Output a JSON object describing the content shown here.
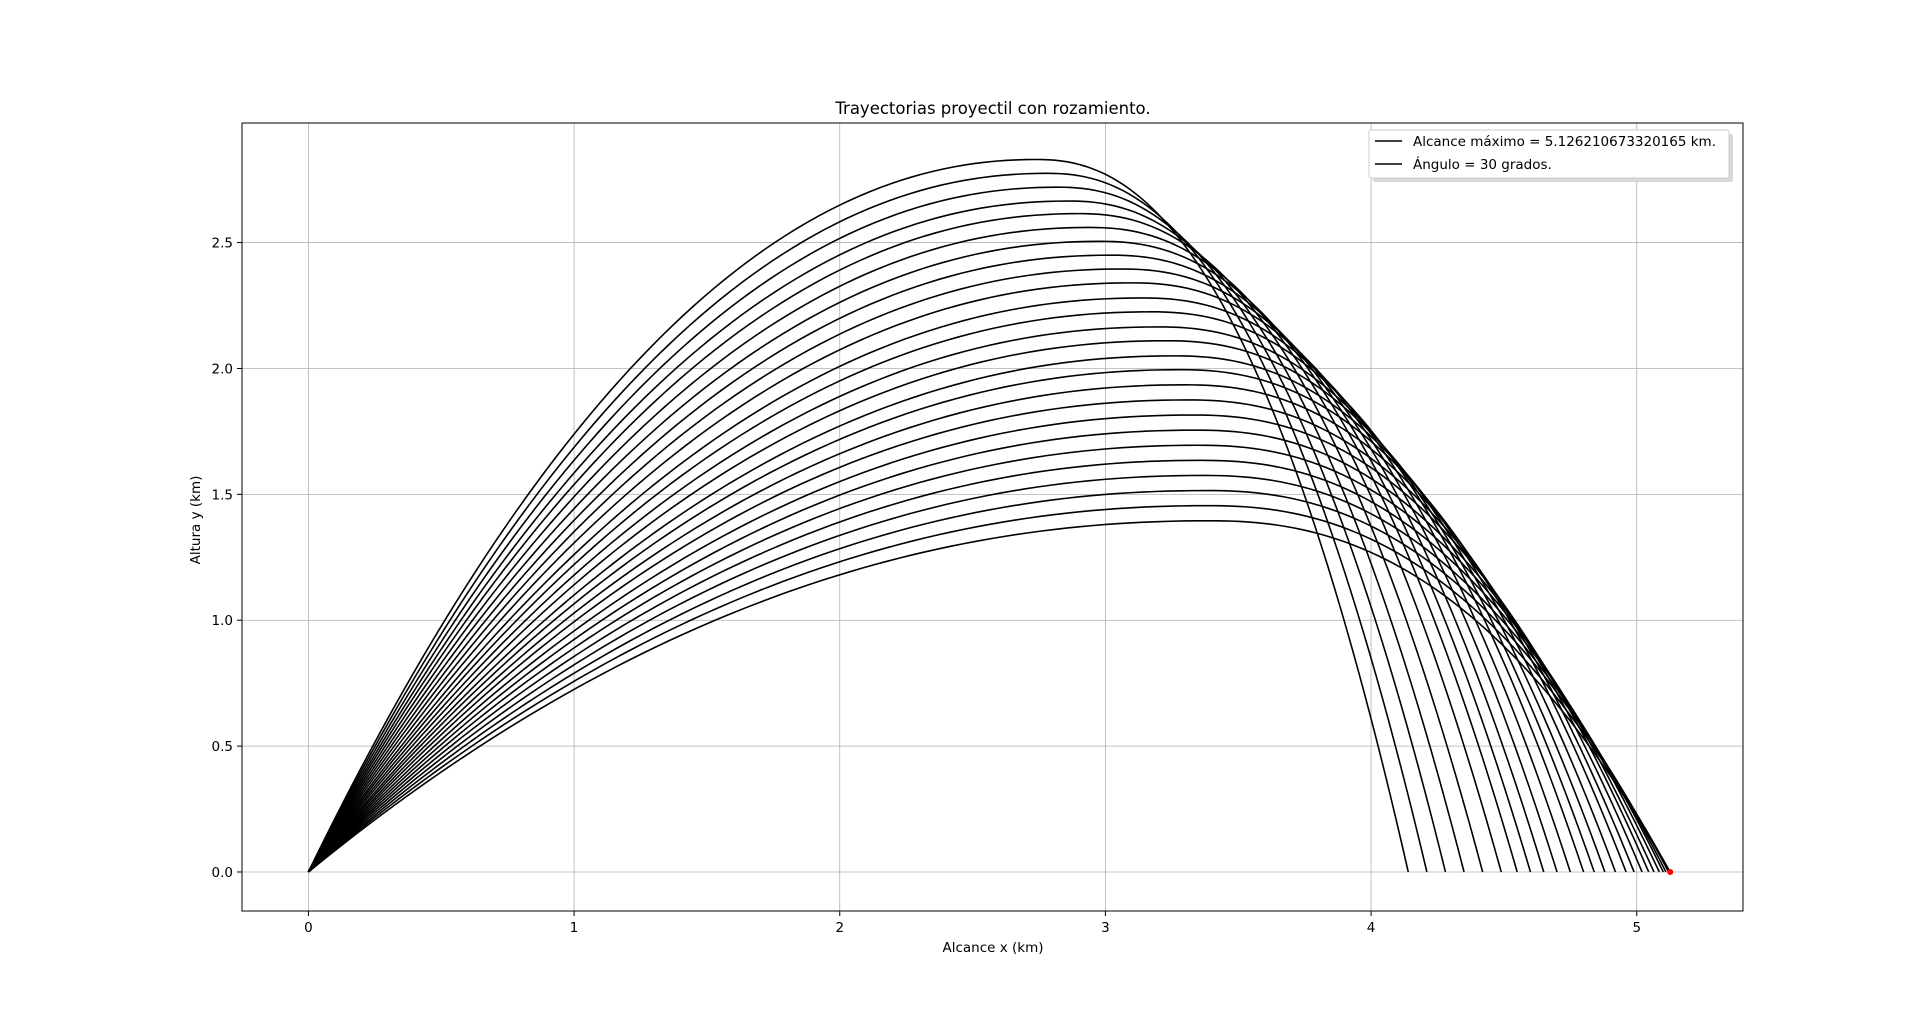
{
  "chart_data": {
    "type": "line",
    "title": "Trayectorias proyectil con rozamiento.",
    "xlabel": "Alcance x (km)",
    "ylabel": "Altura y (km)",
    "xlim": [
      -0.25,
      5.4
    ],
    "ylim": [
      -0.155,
      2.975
    ],
    "xticks": [
      0,
      1,
      2,
      3,
      4,
      5
    ],
    "xtick_labels": [
      "0",
      "1",
      "2",
      "3",
      "4",
      "5"
    ],
    "yticks": [
      0.0,
      0.5,
      1.0,
      1.5,
      2.0,
      2.5
    ],
    "ytick_labels": [
      "0.0",
      "0.5",
      "1.0",
      "1.5",
      "2.0",
      "2.5"
    ],
    "grid": true,
    "legend_position": "top-right",
    "legend": [
      {
        "label": "Alcance máximo = 5.126210673320165 km.",
        "color": "#000000"
      },
      {
        "label": "Ángulo = 30 grados.",
        "color": "#000000"
      }
    ],
    "line_color": "#000000",
    "max_point_color": "#ff0000",
    "max_point": {
      "x": 5.126,
      "y": 0.0
    },
    "series": [
      {
        "apex_x": 2.74,
        "apex_y": 2.83,
        "range": 4.14
      },
      {
        "apex_x": 2.78,
        "apex_y": 2.775,
        "range": 4.21
      },
      {
        "apex_x": 2.82,
        "apex_y": 2.72,
        "range": 4.28
      },
      {
        "apex_x": 2.86,
        "apex_y": 2.665,
        "range": 4.35
      },
      {
        "apex_x": 2.9,
        "apex_y": 2.615,
        "range": 4.42
      },
      {
        "apex_x": 2.94,
        "apex_y": 2.56,
        "range": 4.49
      },
      {
        "apex_x": 2.98,
        "apex_y": 2.505,
        "range": 4.55
      },
      {
        "apex_x": 3.02,
        "apex_y": 2.45,
        "range": 4.6
      },
      {
        "apex_x": 3.06,
        "apex_y": 2.395,
        "range": 4.65
      },
      {
        "apex_x": 3.1,
        "apex_y": 2.34,
        "range": 4.7
      },
      {
        "apex_x": 3.14,
        "apex_y": 2.28,
        "range": 4.75
      },
      {
        "apex_x": 3.17,
        "apex_y": 2.225,
        "range": 4.8
      },
      {
        "apex_x": 3.2,
        "apex_y": 2.165,
        "range": 4.84
      },
      {
        "apex_x": 3.23,
        "apex_y": 2.11,
        "range": 4.88
      },
      {
        "apex_x": 3.26,
        "apex_y": 2.05,
        "range": 4.92
      },
      {
        "apex_x": 3.28,
        "apex_y": 1.995,
        "range": 4.96
      },
      {
        "apex_x": 3.3,
        "apex_y": 1.935,
        "range": 4.99
      },
      {
        "apex_x": 3.31,
        "apex_y": 1.875,
        "range": 5.02
      },
      {
        "apex_x": 3.33,
        "apex_y": 1.815,
        "range": 5.045
      },
      {
        "apex_x": 3.34,
        "apex_y": 1.755,
        "range": 5.065
      },
      {
        "apex_x": 3.35,
        "apex_y": 1.695,
        "range": 5.085
      },
      {
        "apex_x": 3.36,
        "apex_y": 1.635,
        "range": 5.1
      },
      {
        "apex_x": 3.37,
        "apex_y": 1.575,
        "range": 5.11
      },
      {
        "apex_x": 3.38,
        "apex_y": 1.515,
        "range": 5.12
      },
      {
        "apex_x": 3.385,
        "apex_y": 1.455,
        "range": 5.125
      },
      {
        "apex_x": 3.39,
        "apex_y": 1.395,
        "range": 5.126
      }
    ]
  }
}
